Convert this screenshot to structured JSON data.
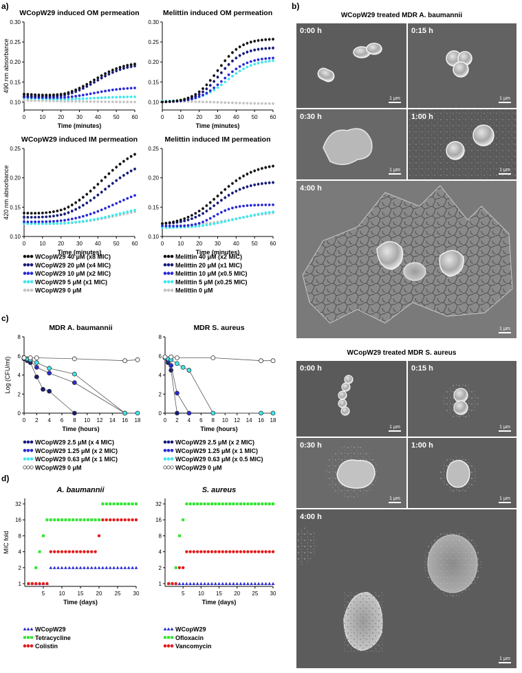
{
  "panel_labels": {
    "a": "a)",
    "b": "b)",
    "c": "c)",
    "d": "d)"
  },
  "microscopy": {
    "title_ab": "WCopW29 treated MDR A. baumannii",
    "title_sa": "WCopW29 treated MDR S. aureus",
    "scale_bar": "1 μm",
    "timepoints": [
      "0:00 h",
      "0:15 h",
      "0:30 h",
      "1:00 h",
      "4:00 h"
    ]
  },
  "legends": {
    "a_left": [
      "WCopW29 40 μM (x8 MIC)",
      "WCopW29 20 μM (x4 MIC)",
      "WCopW29 10 μM (x2 MIC)",
      "WCopW29 5 μM (x1 MIC)",
      "WCopW29 0 μM"
    ],
    "a_right": [
      "Melittin 40 μM (x2 MIC)",
      "Melittin 20 μM (x1 MIC)",
      "Melittin 10 μM (x0.5 MIC)",
      "Melittin 5 μM (x0.25 MIC)",
      "Melittin 0 μM"
    ],
    "c_left": [
      "WCopW29 2.5 μM (x 4 MIC)",
      "WCopW29 1.25 μM (x 2 MIC)",
      "WCopW29 0.63 μM (x 1 MIC)",
      "WCopW29 0 μM"
    ],
    "c_right": [
      "WCopW29 2.5 μM (x 2 MIC)",
      "WCopW29 1.25 μM (x 1 MIC)",
      "WCopW29 0.63 μM (x 0.5 MIC)",
      "WCopW29 0 μM"
    ],
    "d_left": [
      "WCopW29",
      "Tetracycline",
      "Colistin"
    ],
    "d_right": [
      "WCopW29",
      "Ofloxacin",
      "Vancomycin"
    ]
  },
  "colors": {
    "black": "#111111",
    "navy": "#141a7a",
    "blue": "#2a2ad8",
    "cyan": "#3fe8ee",
    "grey": "#c4c4c4",
    "green": "#2ee62e",
    "red": "#e41a1a",
    "tri_blue": "#2b2bcf"
  },
  "chart_data": [
    {
      "id": "a1",
      "type": "scatter",
      "title": "WCopW29 induced OM permeation",
      "xlabel": "Time (minutes)",
      "ylabel": "490 nm absorbance",
      "xlim": [
        0,
        60
      ],
      "ylim": [
        0.08,
        0.3
      ],
      "xticks": [
        "0",
        "10",
        "20",
        "30",
        "40",
        "50",
        "60"
      ],
      "yticks": [
        "0.10",
        "0.15",
        "0.20",
        "0.25",
        "0.30"
      ],
      "series": [
        {
          "name": "WCopW29 40 μM (x8 MIC)",
          "profile": "sigmoid",
          "params": {
            "start": 0.12,
            "min": 0.11,
            "end": 0.195,
            "mid": 38,
            "k": 0.12
          }
        },
        {
          "name": "WCopW29 20 μM (x4 MIC)",
          "profile": "sigmoid",
          "params": {
            "start": 0.115,
            "min": 0.108,
            "end": 0.19,
            "mid": 39,
            "k": 0.12
          }
        },
        {
          "name": "WCopW29 10 μM (x2 MIC)",
          "profile": "sigmoid",
          "params": {
            "start": 0.112,
            "min": 0.108,
            "end": 0.135,
            "mid": 38,
            "k": 0.12
          }
        },
        {
          "name": "WCopW29 5 μM (x1 MIC)",
          "profile": "sigmoid",
          "params": {
            "start": 0.11,
            "min": 0.106,
            "end": 0.113,
            "mid": 38,
            "k": 0.12
          }
        },
        {
          "name": "WCopW29 0 μM",
          "profile": "sigmoid",
          "params": {
            "start": 0.104,
            "min": 0.102,
            "end": 0.1,
            "mid": 38,
            "k": 0.12
          }
        }
      ]
    },
    {
      "id": "a2",
      "type": "scatter",
      "title": "Melittin induced OM permeation",
      "xlabel": "Time (minutes)",
      "ylabel": "",
      "xlim": [
        0,
        60
      ],
      "ylim": [
        0.08,
        0.3
      ],
      "xticks": [
        "0",
        "10",
        "20",
        "30",
        "40",
        "50",
        "60"
      ],
      "yticks": [
        "0.10",
        "0.15",
        "0.20",
        "0.25",
        "0.30"
      ],
      "series": [
        {
          "name": "Melittin 40 μM (x2 MIC)",
          "profile": "sigmoid",
          "params": {
            "start": 0.1,
            "min": 0.1,
            "end": 0.257,
            "mid": 30,
            "k": 0.16
          }
        },
        {
          "name": "Melittin 20 μM (x1 MIC)",
          "profile": "sigmoid",
          "params": {
            "start": 0.1,
            "min": 0.1,
            "end": 0.235,
            "mid": 31,
            "k": 0.16
          }
        },
        {
          "name": "Melittin 10 μM (x0.5 MIC)",
          "profile": "sigmoid",
          "params": {
            "start": 0.1,
            "min": 0.1,
            "end": 0.21,
            "mid": 33,
            "k": 0.15
          }
        },
        {
          "name": "Melittin 5 μM (x0.25 MIC)",
          "profile": "sigmoid",
          "params": {
            "start": 0.102,
            "min": 0.102,
            "end": 0.203,
            "mid": 35,
            "k": 0.14
          }
        },
        {
          "name": "Melittin 0 μM",
          "profile": "sigmoid",
          "params": {
            "start": 0.102,
            "min": 0.101,
            "end": 0.096,
            "mid": 35,
            "k": 0.12
          }
        }
      ]
    },
    {
      "id": "a3",
      "type": "scatter",
      "title": "WCopW29 induced IM permeation",
      "xlabel": "Time (minutes)",
      "ylabel": "420 nm absorbance",
      "xlim": [
        0,
        60
      ],
      "ylim": [
        0.1,
        0.25
      ],
      "xticks": [
        "0",
        "10",
        "20",
        "30",
        "40",
        "50",
        "60"
      ],
      "yticks": [
        "0.10",
        "0.15",
        "0.20",
        "0.25"
      ],
      "series": [
        {
          "name": "WCopW29 40 μM (x8 MIC)",
          "profile": "sigmoid",
          "params": {
            "start": 0.14,
            "min": 0.131,
            "end": 0.24,
            "mid": 42,
            "k": 0.09
          }
        },
        {
          "name": "WCopW29 20 μM (x4 MIC)",
          "profile": "sigmoid",
          "params": {
            "start": 0.133,
            "min": 0.127,
            "end": 0.215,
            "mid": 44,
            "k": 0.09
          }
        },
        {
          "name": "WCopW29 10 μM (x2 MIC)",
          "profile": "sigmoid",
          "params": {
            "start": 0.125,
            "min": 0.122,
            "end": 0.17,
            "mid": 50,
            "k": 0.08
          }
        },
        {
          "name": "WCopW29 5 μM (x1 MIC)",
          "profile": "sigmoid",
          "params": {
            "start": 0.122,
            "min": 0.12,
            "end": 0.145,
            "mid": 52,
            "k": 0.08
          }
        },
        {
          "name": "WCopW29 0 μM",
          "profile": "sigmoid",
          "params": {
            "start": 0.122,
            "min": 0.12,
            "end": 0.142,
            "mid": 52,
            "k": 0.08
          }
        }
      ]
    },
    {
      "id": "a4",
      "type": "scatter",
      "title": "Melittin induced IM permeation",
      "xlabel": "Time (minutes)",
      "ylabel": "",
      "xlim": [
        0,
        60
      ],
      "ylim": [
        0.1,
        0.25
      ],
      "xticks": [
        "0",
        "10",
        "20",
        "30",
        "40",
        "50",
        "60"
      ],
      "yticks": [
        "0.10",
        "0.15",
        "0.20",
        "0.25"
      ],
      "series": [
        {
          "name": "Melittin 40 μM (x2 MIC)",
          "profile": "sigmoid",
          "params": {
            "start": 0.122,
            "min": 0.118,
            "end": 0.22,
            "mid": 30,
            "k": 0.1
          }
        },
        {
          "name": "Melittin 20 μM (x1 MIC)",
          "profile": "sigmoid",
          "params": {
            "start": 0.122,
            "min": 0.118,
            "end": 0.192,
            "mid": 29,
            "k": 0.12
          }
        },
        {
          "name": "Melittin 10 μM (x0.5 MIC)",
          "profile": "sigmoid",
          "params": {
            "start": 0.118,
            "min": 0.115,
            "end": 0.154,
            "mid": 28,
            "k": 0.18
          }
        },
        {
          "name": "Melittin 5 μM (x0.25 MIC)",
          "profile": "sigmoid",
          "params": {
            "start": 0.115,
            "min": 0.113,
            "end": 0.142,
            "mid": 40,
            "k": 0.08
          }
        },
        {
          "name": "Melittin 0 μM",
          "profile": "sigmoid",
          "params": {
            "start": 0.118,
            "min": 0.117,
            "end": 0.14,
            "mid": 40,
            "k": 0.08
          }
        }
      ]
    },
    {
      "id": "c1",
      "type": "line",
      "title": "MDR A. baumannii",
      "xlabel": "Time (hours)",
      "ylabel": "Log (CFU/ml)",
      "xlim": [
        0,
        18
      ],
      "ylim": [
        0,
        8
      ],
      "xticks": [
        "0",
        "2",
        "4",
        "6",
        "8",
        "10",
        "12",
        "14",
        "16",
        "18"
      ],
      "yticks": [
        "0",
        "2",
        "4",
        "6",
        "8"
      ],
      "series": [
        {
          "name": "WCopW29 2.5 μM (x 4 MIC)",
          "x": [
            0,
            0.5,
            1,
            2,
            3,
            4,
            8
          ],
          "y": [
            5.7,
            5.5,
            5.3,
            3.8,
            2.5,
            2.3,
            0
          ]
        },
        {
          "name": "WCopW29 1.25 μM (x 2 MIC)",
          "x": [
            0,
            0.5,
            1,
            2,
            4,
            8,
            16
          ],
          "y": [
            5.8,
            5.6,
            5.5,
            4.8,
            4.2,
            3.2,
            0
          ]
        },
        {
          "name": "WCopW29 0.63 μM (x 1 MIC)",
          "x": [
            0,
            0.5,
            1,
            2,
            4,
            8,
            16,
            18
          ],
          "y": [
            5.8,
            5.7,
            5.6,
            5.3,
            4.7,
            4.1,
            0,
            0
          ]
        },
        {
          "name": "WCopW29 0 μM",
          "x": [
            0,
            1,
            2,
            8,
            16,
            18
          ],
          "y": [
            5.8,
            5.8,
            5.8,
            5.7,
            5.5,
            5.6
          ]
        }
      ]
    },
    {
      "id": "c2",
      "type": "line",
      "title": "MDR S. aureus",
      "xlabel": "Time (hours)",
      "ylabel": "",
      "xlim": [
        0,
        18
      ],
      "ylim": [
        0,
        8
      ],
      "xticks": [
        "0",
        "2",
        "4",
        "6",
        "8",
        "10",
        "12",
        "14",
        "16",
        "18"
      ],
      "yticks": [
        "0",
        "2",
        "4",
        "6",
        "8"
      ],
      "series": [
        {
          "name": "WCopW29 2.5 μM (x 2 MIC)",
          "x": [
            0,
            0.5,
            1,
            2
          ],
          "y": [
            5.8,
            5.3,
            4.5,
            0
          ]
        },
        {
          "name": "WCopW29 1.25 μM (x 1 MIC)",
          "x": [
            0,
            0.5,
            1,
            2,
            4
          ],
          "y": [
            5.8,
            5.5,
            5.0,
            2.1,
            0
          ]
        },
        {
          "name": "WCopW29 0.63 μM (x 0.5 MIC)",
          "x": [
            0,
            0.5,
            1,
            2,
            3,
            4,
            8,
            16,
            18
          ],
          "y": [
            5.8,
            5.7,
            5.6,
            5.2,
            4.8,
            4.5,
            0,
            0,
            0
          ]
        },
        {
          "name": "WCopW29 0 μM",
          "x": [
            0,
            1,
            2,
            8,
            16,
            18
          ],
          "y": [
            5.9,
            5.9,
            5.8,
            5.8,
            5.5,
            5.5
          ]
        }
      ]
    },
    {
      "id": "d1",
      "type": "scatter",
      "title": "A. baumannii",
      "xlabel": "Time (days)",
      "ylabel": "MIC fold",
      "xlim": [
        0,
        30
      ],
      "log2_y": true,
      "xticks": [
        "5",
        "10",
        "15",
        "20",
        "25",
        "30"
      ],
      "yticks": [
        "1",
        "2",
        "4",
        "8",
        "16",
        "32"
      ],
      "series": [
        {
          "name": "WCopW29",
          "steps": [
            [
              1,
              6,
              1
            ],
            [
              7,
              30,
              2
            ]
          ]
        },
        {
          "name": "Tetracycline",
          "steps": [
            [
              1,
              2,
              1
            ],
            [
              3,
              3,
              2
            ],
            [
              4,
              4,
              4
            ],
            [
              5,
              5,
              8
            ],
            [
              6,
              20,
              16
            ],
            [
              21,
              30,
              32
            ]
          ]
        },
        {
          "name": "Colistin",
          "steps": [
            [
              1,
              6,
              1
            ],
            [
              7,
              19,
              4
            ],
            [
              20,
              20,
              8
            ],
            [
              21,
              30,
              16
            ]
          ]
        }
      ]
    },
    {
      "id": "d2",
      "type": "scatter",
      "title": "S. aureus",
      "xlabel": "Time (days)",
      "ylabel": "",
      "xlim": [
        0,
        30
      ],
      "log2_y": true,
      "xticks": [
        "5",
        "10",
        "15",
        "20",
        "25",
        "30"
      ],
      "yticks": [
        "1",
        "2",
        "4",
        "8",
        "16",
        "32"
      ],
      "series": [
        {
          "name": "WCopW29",
          "steps": [
            [
              1,
              30,
              1
            ]
          ]
        },
        {
          "name": "Ofloxacin",
          "steps": [
            [
              1,
              2,
              1
            ],
            [
              3,
              3,
              2
            ],
            [
              4,
              4,
              8
            ],
            [
              5,
              5,
              16
            ],
            [
              6,
              30,
              32
            ]
          ]
        },
        {
          "name": "Vancomycin",
          "steps": [
            [
              1,
              3,
              1
            ],
            [
              4,
              5,
              2
            ],
            [
              6,
              30,
              4
            ]
          ]
        }
      ]
    }
  ]
}
